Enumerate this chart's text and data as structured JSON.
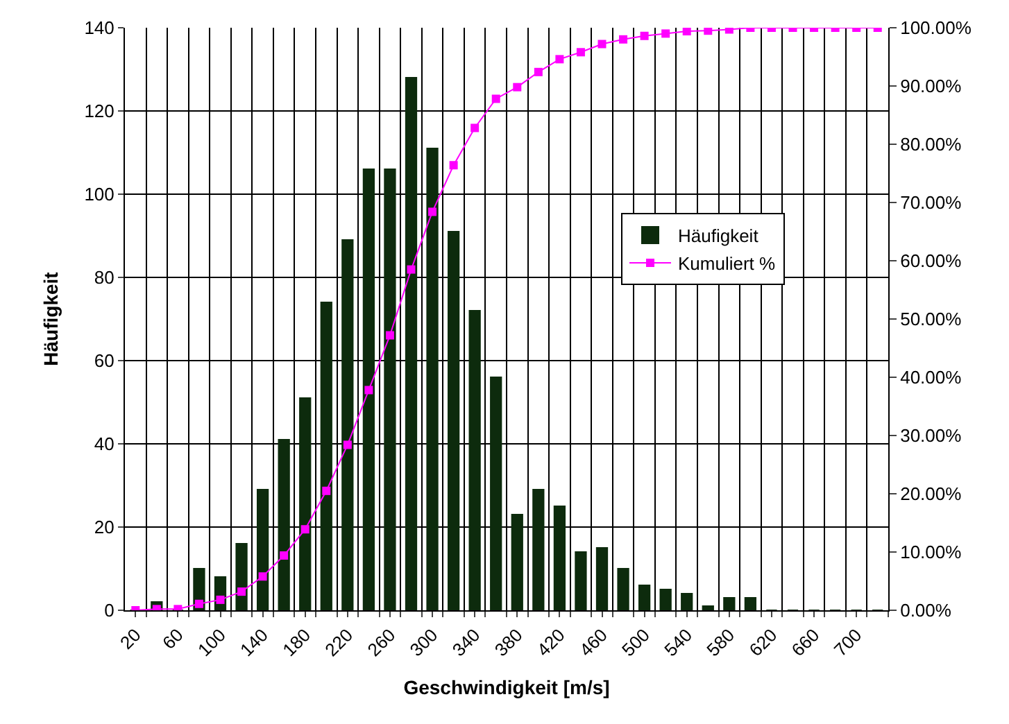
{
  "chart_data": {
    "type": "bar",
    "xlabel": "Geschwindigkeit [m/s]",
    "ylabel": "Häufigkeit",
    "categories": [
      "20",
      null,
      "60",
      null,
      "100",
      null,
      "140",
      null,
      "180",
      null,
      "220",
      null,
      "260",
      null,
      "300",
      null,
      "340",
      null,
      "380",
      null,
      "420",
      null,
      "460",
      null,
      "500",
      null,
      "540",
      null,
      "580",
      null,
      "620",
      null,
      "660",
      null,
      "700",
      null
    ],
    "series": [
      {
        "name": "Häufigkeit",
        "color": "#0d2b0d",
        "values": [
          0,
          2,
          0,
          10,
          8,
          16,
          29,
          41,
          51,
          74,
          89,
          106,
          106,
          128,
          111,
          91,
          72,
          56,
          23,
          29,
          25,
          14,
          15,
          10,
          6,
          5,
          4,
          1,
          3,
          3,
          0,
          0,
          0,
          0,
          0,
          0
        ]
      },
      {
        "name": "Kumuliert %",
        "type": "line",
        "axis": "y2",
        "color": "#ff00ff",
        "marker": "square",
        "line_style": "solid",
        "values": [
          0,
          0.2,
          0.2,
          1.1,
          1.8,
          3.2,
          5.8,
          9.4,
          13.9,
          20.5,
          28.4,
          37.8,
          47.2,
          58.5,
          68.4,
          76.4,
          82.8,
          87.8,
          89.8,
          92.4,
          94.6,
          95.8,
          97.2,
          98.0,
          98.6,
          99.0,
          99.4,
          99.5,
          99.7,
          100,
          100,
          100,
          100,
          100,
          100,
          100
        ]
      }
    ],
    "ylim": [
      0,
      140
    ],
    "yticks": [
      0,
      20,
      40,
      60,
      80,
      100,
      120,
      140
    ],
    "y2lim": [
      0,
      100
    ],
    "y2ticks": [
      {
        "value": 0,
        "label": "0.00%"
      },
      {
        "value": 10,
        "label": "10.00%"
      },
      {
        "value": 20,
        "label": "20.00%"
      },
      {
        "value": 30,
        "label": "30.00%"
      },
      {
        "value": 40,
        "label": "40.00%"
      },
      {
        "value": 50,
        "label": "50.00%"
      },
      {
        "value": 60,
        "label": "60.00%"
      },
      {
        "value": 70,
        "label": "70.00%"
      },
      {
        "value": 80,
        "label": "80.00%"
      },
      {
        "value": 90,
        "label": "90.00%"
      },
      {
        "value": 100,
        "label": "100.00%"
      }
    ],
    "grid": true,
    "legend": "right"
  }
}
